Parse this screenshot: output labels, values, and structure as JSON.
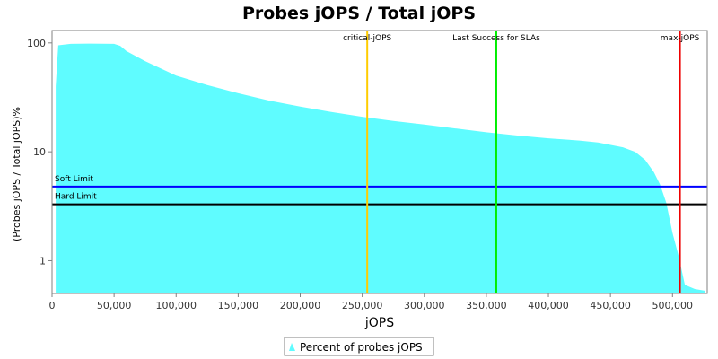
{
  "chart_data": {
    "type": "area",
    "title": "Probes jOPS / Total jOPS",
    "xlabel": "jOPS",
    "ylabel": "(Probes jOPS / Total jOPS)%",
    "xlim": [
      0,
      528000
    ],
    "ylim": [
      0.5,
      130
    ],
    "yscale": "log",
    "grid": false,
    "legend_position": "bottom",
    "x_ticks": [
      0,
      50000,
      100000,
      150000,
      200000,
      250000,
      300000,
      350000,
      400000,
      450000,
      500000
    ],
    "x_tick_labels": [
      "0",
      "50,000",
      "100,000",
      "150,000",
      "200,000",
      "250,000",
      "300,000",
      "350,000",
      "400,000",
      "450,000",
      "500,000"
    ],
    "y_ticks": [
      1,
      10,
      100
    ],
    "y_tick_labels": [
      "1",
      "10",
      "100"
    ],
    "series": [
      {
        "name": "Percent of probes jOPS",
        "color": "#5ffcff",
        "x": [
          3000,
          5000,
          15000,
          30000,
          50000,
          55000,
          60000,
          75000,
          100000,
          125000,
          150000,
          175000,
          200000,
          225000,
          250000,
          275000,
          300000,
          325000,
          350000,
          375000,
          400000,
          425000,
          440000,
          460000,
          470000,
          478000,
          485000,
          490000,
          495000,
          500000,
          505000,
          510000,
          518000,
          526000
        ],
        "y": [
          40,
          95,
          98,
          98.5,
          98,
          94,
          84,
          68,
          50,
          41,
          34.5,
          29.5,
          26,
          23.2,
          21,
          19.2,
          17.8,
          16.4,
          15.1,
          14.1,
          13.3,
          12.7,
          12.2,
          11,
          10,
          8.4,
          6.5,
          5,
          3.4,
          1.8,
          1.1,
          0.6,
          0.55,
          0.53
        ]
      }
    ],
    "horizontal_lines": [
      {
        "label": "Soft Limit",
        "y": 4.8,
        "color": "#0000ff"
      },
      {
        "label": "Hard Limit",
        "y": 3.3,
        "color": "#000000"
      }
    ],
    "vertical_lines": [
      {
        "label": "critical-jOPS",
        "x": 254000,
        "color": "#ffcc00"
      },
      {
        "label": "Last Success for SLAs",
        "x": 358000,
        "color": "#00ee00"
      },
      {
        "label": "max-jOPS",
        "x": 506000,
        "color": "#ee0000"
      }
    ]
  }
}
